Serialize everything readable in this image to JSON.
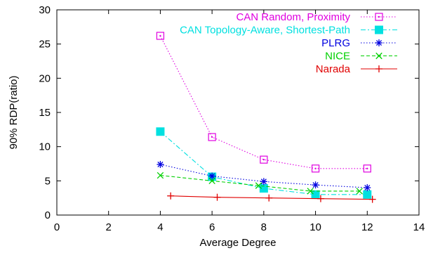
{
  "chart_data": {
    "type": "line",
    "xlabel": "Average Degree",
    "ylabel": "90% RDP(ratio)",
    "xlim": [
      0,
      14
    ],
    "ylim": [
      0,
      30
    ],
    "xticks": [
      0,
      2,
      4,
      6,
      8,
      10,
      12,
      14
    ],
    "yticks": [
      0,
      5,
      10,
      15,
      20,
      25,
      30
    ],
    "grid": false,
    "legend_position": "top-right",
    "series": [
      {
        "name": "CAN Random, Proximity",
        "color": "#e000e0",
        "marker": "square-dot",
        "line_style": "dotted",
        "x": [
          4,
          6,
          8,
          10,
          12
        ],
        "y": [
          26.2,
          11.4,
          8.1,
          6.8,
          6.8
        ]
      },
      {
        "name": "CAN Topology-Aware, Shortest-Path",
        "color": "#00e0e0",
        "marker": "filled-square",
        "line_style": "dash-dot",
        "x": [
          4,
          6,
          8,
          10,
          12
        ],
        "y": [
          12.2,
          5.6,
          3.9,
          3.0,
          3.0
        ]
      },
      {
        "name": "PLRG",
        "color": "#0000e0",
        "marker": "asterisk",
        "line_style": "dotted",
        "x": [
          4,
          6,
          8,
          10,
          12
        ],
        "y": [
          7.4,
          5.7,
          4.9,
          4.4,
          4.0
        ]
      },
      {
        "name": "NICE",
        "color": "#00d000",
        "marker": "x",
        "line_style": "dashed",
        "x": [
          4,
          6,
          7.8,
          9.8,
          11.7
        ],
        "y": [
          5.8,
          5.0,
          4.3,
          3.5,
          3.5
        ]
      },
      {
        "name": "Narada",
        "color": "#e00000",
        "marker": "plus",
        "line_style": "solid",
        "x": [
          4.4,
          6.2,
          8.2,
          10.2,
          12.2
        ],
        "y": [
          2.8,
          2.6,
          2.5,
          2.4,
          2.3
        ]
      }
    ]
  }
}
